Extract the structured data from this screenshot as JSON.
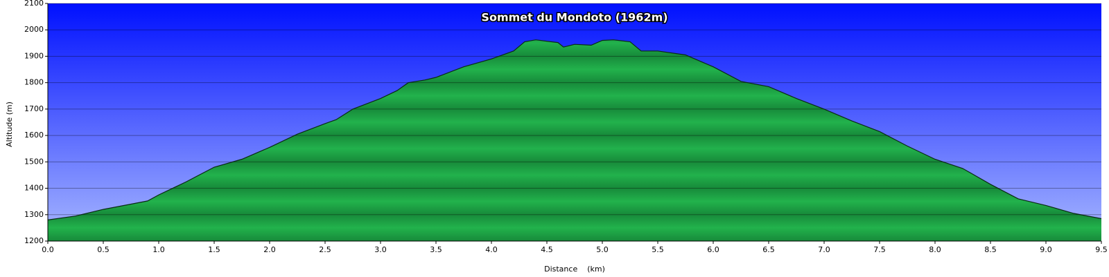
{
  "chart_data": {
    "type": "area",
    "title": "Sommet du Mondoto (1962m)",
    "x_label": "Distance    (km)",
    "y_label": "Altitude (m)",
    "x": [
      0.0,
      0.25,
      0.5,
      0.75,
      0.9,
      1.0,
      1.25,
      1.5,
      1.75,
      2.0,
      2.25,
      2.5,
      2.6,
      2.75,
      3.0,
      3.15,
      3.25,
      3.4,
      3.5,
      3.75,
      4.0,
      4.2,
      4.3,
      4.4,
      4.6,
      4.65,
      4.75,
      4.9,
      5.0,
      5.1,
      5.25,
      5.35,
      5.5,
      5.75,
      6.0,
      6.25,
      6.5,
      6.75,
      7.0,
      7.25,
      7.5,
      7.75,
      8.0,
      8.25,
      8.5,
      8.75,
      9.0,
      9.25,
      9.5
    ],
    "values": [
      1280,
      1295,
      1320,
      1340,
      1352,
      1375,
      1425,
      1480,
      1510,
      1555,
      1605,
      1645,
      1660,
      1700,
      1740,
      1770,
      1800,
      1810,
      1820,
      1860,
      1890,
      1920,
      1955,
      1962,
      1952,
      1935,
      1945,
      1942,
      1960,
      1962,
      1955,
      1920,
      1920,
      1905,
      1860,
      1805,
      1785,
      1740,
      1700,
      1655,
      1615,
      1560,
      1510,
      1475,
      1415,
      1360,
      1335,
      1305,
      1285
    ],
    "color": "#1faa48",
    "xlim": [
      0,
      9.5
    ],
    "ylim": [
      1200,
      2100
    ],
    "xticks": [
      {
        "value": 0,
        "label": "0.0"
      },
      0.5,
      {
        "value": 1,
        "label": "1.0"
      },
      1.5,
      {
        "value": 2,
        "label": "2.0"
      },
      2.5,
      {
        "value": 3,
        "label": "3.0"
      },
      3.5,
      {
        "value": 4,
        "label": "4.0"
      },
      4.5,
      {
        "value": 5,
        "label": "5.0"
      },
      5.5,
      {
        "value": 6,
        "label": "6.0"
      },
      6.5,
      {
        "value": 7,
        "label": "7.0"
      },
      7.5,
      {
        "value": 8,
        "label": "8.0"
      },
      8.5,
      {
        "value": 9,
        "label": "9.0"
      },
      9.5
    ],
    "yticks": [
      1200,
      1300,
      1400,
      1500,
      1600,
      1700,
      1800,
      1900,
      2000,
      2100
    ],
    "grid": true
  }
}
